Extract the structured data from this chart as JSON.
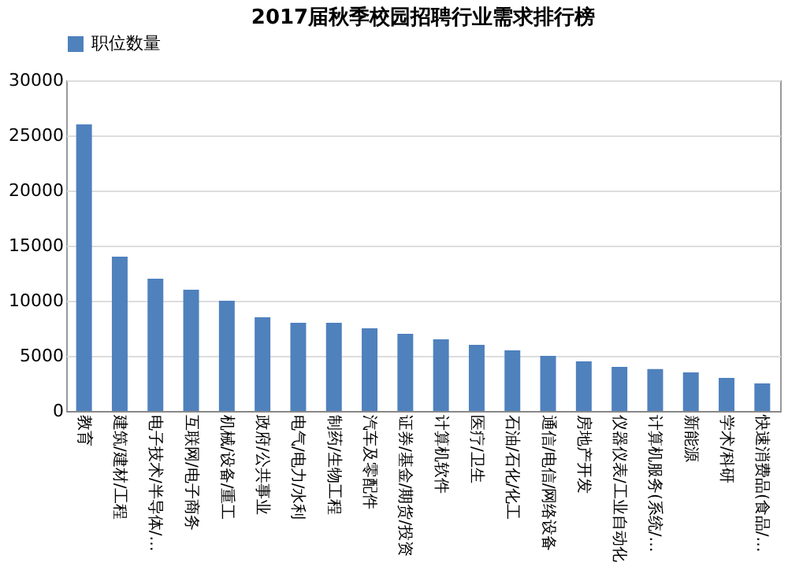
{
  "chart_data": {
    "type": "bar",
    "title": "2017届秋季校园招聘行业需求排行榜",
    "categories": [
      "教育",
      "建筑/建材/工程",
      "电子技术/半导体/…",
      "互联网/电子商务",
      "机械/设备/重工",
      "政府/公共事业",
      "电气/电力/水利",
      "制药/生物工程",
      "汽车及零配件",
      "证券/基金/期货/投资",
      "计算机软件",
      "医疗/卫生",
      "石油/石化/化工",
      "通信/电信/网络设备",
      "房地产开发",
      "仪器仪表/工业自动化",
      "计算机服务(系统/…",
      "新能源",
      "学术/科研",
      "快速消费品(食品/…"
    ],
    "series": [
      {
        "name": "职位数量",
        "color": "#4f81bd",
        "values": [
          26000,
          14000,
          12000,
          11000,
          10000,
          8500,
          8000,
          8000,
          7500,
          7000,
          6500,
          6000,
          5500,
          5000,
          4500,
          4000,
          3800,
          3500,
          3000,
          2500
        ]
      }
    ],
    "ylim": [
      0,
      30000
    ],
    "yticks": [
      0,
      5000,
      10000,
      15000,
      20000,
      25000,
      30000
    ],
    "grid": "y",
    "legend": "top"
  }
}
